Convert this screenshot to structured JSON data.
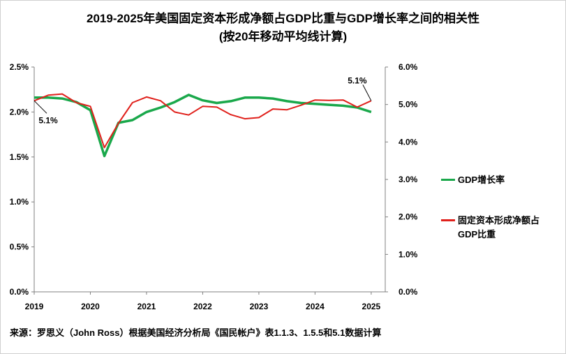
{
  "title_line_1": "2019-2025年美国固定资本形成净额占GDP比重与GDP增长率之间的相关性",
  "title_line_2": "(按20年移动平均线计算)",
  "source": "来源：罗思义（John Ross）根据美国经济分析局《国民帐户》表1.1.3、1.5.5和5.1数据计算",
  "colors": {
    "gdp_growth": "#1aa84b",
    "net_fcf": "#e0201b",
    "axis": "#808080"
  },
  "chart_data": {
    "type": "line",
    "x_label": "",
    "x_ticks": [
      "2019",
      "2020",
      "2021",
      "2022",
      "2023",
      "2024",
      "2025"
    ],
    "xlim": [
      2019,
      2025.25
    ],
    "left_axis": {
      "ylim": [
        0,
        2.5
      ],
      "ticks": [
        0,
        0.5,
        1.0,
        1.5,
        2.0,
        2.5
      ],
      "tick_labels": [
        "0.0%",
        "0.5%",
        "1.0%",
        "1.5%",
        "2.0%",
        "2.5%"
      ]
    },
    "right_axis": {
      "ylim": [
        0,
        6
      ],
      "ticks": [
        0,
        1,
        2,
        3,
        4,
        5,
        6
      ],
      "tick_labels": [
        "0.0%",
        "1.0%",
        "2.0%",
        "3.0%",
        "4.0%",
        "5.0%",
        "6.0%"
      ]
    },
    "legend_position": "right",
    "grid": false,
    "series": [
      {
        "name": "GDP增长率",
        "axis": "left",
        "color": "#1aa84b",
        "x": [
          2019.0,
          2019.25,
          2019.5,
          2019.75,
          2020.0,
          2020.25,
          2020.5,
          2020.75,
          2021.0,
          2021.25,
          2021.5,
          2021.75,
          2022.0,
          2022.25,
          2022.5,
          2022.75,
          2023.0,
          2023.25,
          2023.5,
          2023.75,
          2024.0,
          2024.25,
          2024.5,
          2024.75,
          2025.0
        ],
        "values": [
          2.16,
          2.16,
          2.15,
          2.11,
          2.02,
          1.51,
          1.88,
          1.91,
          2.0,
          2.05,
          2.11,
          2.19,
          2.13,
          2.1,
          2.12,
          2.16,
          2.16,
          2.15,
          2.12,
          2.1,
          2.09,
          2.08,
          2.07,
          2.05,
          2.0
        ]
      },
      {
        "name": "固定资本形成净额占GDP比重",
        "axis": "right",
        "color": "#e0201b",
        "x": [
          2019.0,
          2019.25,
          2019.5,
          2019.75,
          2020.0,
          2020.25,
          2020.5,
          2020.75,
          2021.0,
          2021.25,
          2021.5,
          2021.75,
          2022.0,
          2022.25,
          2022.5,
          2022.75,
          2023.0,
          2023.25,
          2023.5,
          2023.75,
          2024.0,
          2024.25,
          2024.5,
          2024.75,
          2025.0
        ],
        "values": [
          5.1,
          5.25,
          5.28,
          5.05,
          4.95,
          3.85,
          4.5,
          5.05,
          5.2,
          5.1,
          4.8,
          4.72,
          4.95,
          4.93,
          4.73,
          4.62,
          4.65,
          4.88,
          4.86,
          4.98,
          5.12,
          5.11,
          5.12,
          4.93,
          5.1
        ]
      }
    ],
    "annotations": [
      {
        "text": "5.1%",
        "series": 1,
        "point_index": 0,
        "placement": "below"
      },
      {
        "text": "5.1%",
        "series": 1,
        "point_index": 24,
        "placement": "above"
      }
    ]
  },
  "legend": [
    {
      "label": "GDP增长率",
      "color": "#1aa84b"
    },
    {
      "label": "固定资本形成净额占\nGDP比重",
      "color": "#e0201b"
    }
  ]
}
